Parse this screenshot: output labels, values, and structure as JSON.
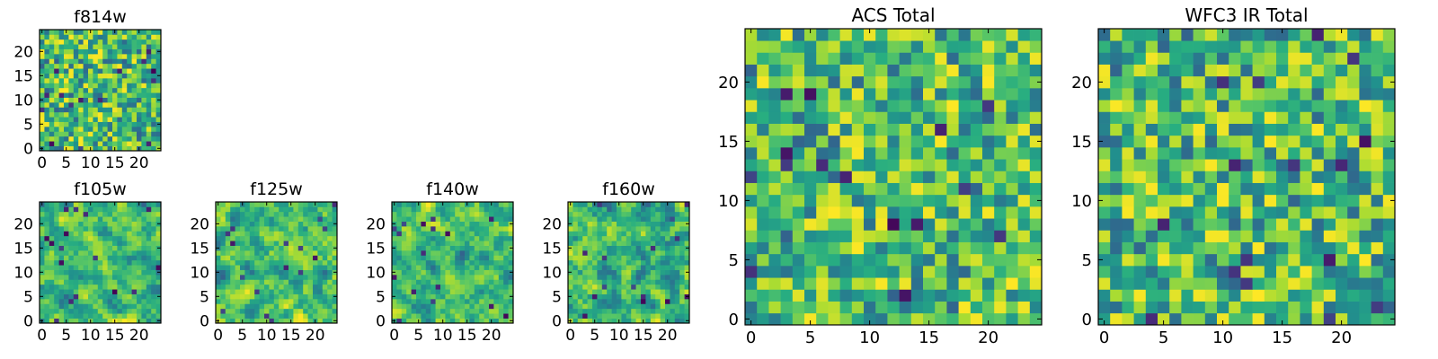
{
  "chart_data": [
    {
      "type": "heatmap",
      "title": "f814w",
      "grid_size": 25,
      "xlim": [
        -0.5,
        24.5
      ],
      "ylim": [
        -0.5,
        24.5
      ],
      "xticks": [
        0,
        5,
        10,
        15,
        20
      ],
      "yticks": [
        0,
        5,
        10,
        15,
        20
      ],
      "xtick_labels": [
        "0",
        "5",
        "10",
        "15",
        "20"
      ],
      "ytick_labels": [
        "0",
        "5",
        "10",
        "15",
        "20"
      ],
      "colormap": "viridis",
      "seed": 814,
      "smooth": 0
    },
    {
      "type": "heatmap",
      "title": "f105w",
      "grid_size": 25,
      "xlim": [
        -0.5,
        24.5
      ],
      "ylim": [
        -0.5,
        24.5
      ],
      "xticks": [
        0,
        5,
        10,
        15,
        20
      ],
      "yticks": [
        0,
        5,
        10,
        15,
        20
      ],
      "xtick_labels": [
        "0",
        "5",
        "10",
        "15",
        "20"
      ],
      "ytick_labels": [
        "0",
        "5",
        "10",
        "15",
        "20"
      ],
      "colormap": "viridis",
      "seed": 105,
      "smooth": 1
    },
    {
      "type": "heatmap",
      "title": "f125w",
      "grid_size": 25,
      "xlim": [
        -0.5,
        24.5
      ],
      "ylim": [
        -0.5,
        24.5
      ],
      "xticks": [
        0,
        5,
        10,
        15,
        20
      ],
      "yticks": [
        0,
        5,
        10,
        15,
        20
      ],
      "xtick_labels": [
        "0",
        "5",
        "10",
        "15",
        "20"
      ],
      "ytick_labels": [
        "0",
        "5",
        "10",
        "15",
        "20"
      ],
      "colormap": "viridis",
      "seed": 125,
      "smooth": 1
    },
    {
      "type": "heatmap",
      "title": "f140w",
      "grid_size": 25,
      "xlim": [
        -0.5,
        24.5
      ],
      "ylim": [
        -0.5,
        24.5
      ],
      "xticks": [
        0,
        5,
        10,
        15,
        20
      ],
      "yticks": [
        0,
        5,
        10,
        15,
        20
      ],
      "xtick_labels": [
        "0",
        "5",
        "10",
        "15",
        "20"
      ],
      "ytick_labels": [
        "0",
        "5",
        "10",
        "15",
        "20"
      ],
      "colormap": "viridis",
      "seed": 140,
      "smooth": 1
    },
    {
      "type": "heatmap",
      "title": "f160w",
      "grid_size": 25,
      "xlim": [
        -0.5,
        24.5
      ],
      "ylim": [
        -0.5,
        24.5
      ],
      "xticks": [
        0,
        5,
        10,
        15,
        20
      ],
      "yticks": [
        0,
        5,
        10,
        15,
        20
      ],
      "xtick_labels": [
        "0",
        "5",
        "10",
        "15",
        "20"
      ],
      "ytick_labels": [
        "0",
        "5",
        "10",
        "15",
        "20"
      ],
      "colormap": "viridis",
      "seed": 160,
      "smooth": 1
    },
    {
      "type": "heatmap",
      "title": "ACS Total",
      "grid_size": 25,
      "xlim": [
        -0.5,
        24.5
      ],
      "ylim": [
        -0.5,
        24.5
      ],
      "xticks": [
        0,
        5,
        10,
        15,
        20
      ],
      "yticks": [
        0,
        5,
        10,
        15,
        20
      ],
      "xtick_labels": [
        "0",
        "5",
        "10",
        "15",
        "20"
      ],
      "ytick_labels": [
        "0",
        "5",
        "10",
        "15",
        "20"
      ],
      "colormap": "viridis",
      "seed": 1001,
      "smooth": 0
    },
    {
      "type": "heatmap",
      "title": "WFC3 IR Total",
      "grid_size": 25,
      "xlim": [
        -0.5,
        24.5
      ],
      "ylim": [
        -0.5,
        24.5
      ],
      "xticks": [
        0,
        5,
        10,
        15,
        20
      ],
      "yticks": [
        0,
        5,
        10,
        15,
        20
      ],
      "xtick_labels": [
        "0",
        "5",
        "10",
        "15",
        "20"
      ],
      "ytick_labels": [
        "0",
        "5",
        "10",
        "15",
        "20"
      ],
      "colormap": "viridis",
      "seed": 2002,
      "smooth": 0
    }
  ]
}
